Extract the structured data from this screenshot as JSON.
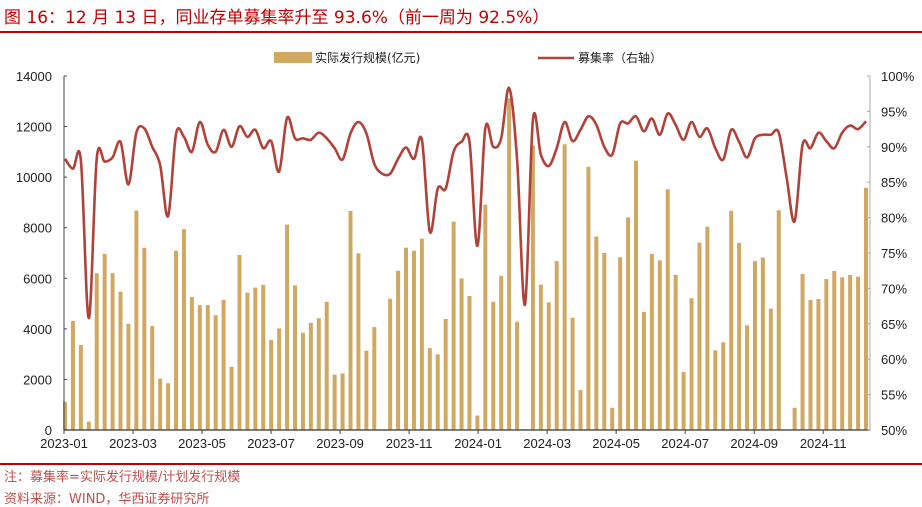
{
  "title": "图 16：12 月 13 日，同业存单募集率升至 93.6%（前一周为 92.5%）",
  "note": "注：募集率=实际发行规模/计划发行规模",
  "source": "资料来源：WIND，华西证券研究所",
  "colors": {
    "bar": "#d0a862",
    "line": "#b0423a",
    "title": "#c00000"
  },
  "chart_data": {
    "type": "bar+line",
    "legend_placement": "top",
    "grid": false,
    "x_tick_labels": [
      "2023-01",
      "2023-03",
      "2023-05",
      "2023-07",
      "2023-09",
      "2023-11",
      "2024-01",
      "2024-03",
      "2024-05",
      "2024-07",
      "2024-09",
      "2024-11"
    ],
    "y_left": {
      "ylim": [
        0,
        14000
      ],
      "ticks": [
        "0",
        "2000",
        "4000",
        "6000",
        "8000",
        "10000",
        "12000",
        "14000"
      ]
    },
    "y_right": {
      "ylim": [
        50,
        100
      ],
      "ticks": [
        "50%",
        "55%",
        "60%",
        "65%",
        "70%",
        "75%",
        "80%",
        "85%",
        "90%",
        "95%",
        "100%"
      ]
    },
    "series": [
      {
        "name": "实际发行规模(亿元)",
        "type": "bar",
        "axis": "left",
        "values": [
          1120,
          4310,
          3360,
          330,
          6200,
          6960,
          6200,
          5470,
          4200,
          8680,
          7210,
          4110,
          2030,
          1850,
          7090,
          7940,
          5260,
          4940,
          4940,
          4540,
          5150,
          2500,
          6920,
          5430,
          5630,
          5740,
          3560,
          4020,
          8120,
          5720,
          3850,
          4240,
          4420,
          5070,
          2190,
          2240,
          8660,
          6990,
          3140,
          4070,
          0,
          5190,
          6300,
          7210,
          7090,
          7570,
          3240,
          2990,
          4390,
          8240,
          5990,
          5300,
          570,
          8910,
          5070,
          6100,
          13120,
          4280,
          40,
          11260,
          5750,
          5050,
          6680,
          11300,
          4440,
          1580,
          10410,
          7650,
          7000,
          880,
          6830,
          8410,
          10650,
          4670,
          6960,
          6710,
          9520,
          6130,
          2290,
          5210,
          7410,
          8040,
          3150,
          3470,
          8670,
          7400,
          4140,
          6680,
          6820,
          4800,
          8690,
          0,
          880,
          6170,
          5140,
          5180,
          5970,
          6290,
          6040,
          6130,
          6060,
          9580
        ]
      },
      {
        "name": "募集率（右轴）",
        "type": "line",
        "axis": "right",
        "values": [
          88.3,
          86.9,
          88.1,
          65.8,
          88.3,
          87.9,
          88.5,
          90.7,
          84.7,
          92.0,
          92.6,
          90.0,
          87.4,
          80.2,
          91.8,
          91.4,
          89.3,
          93.5,
          90.3,
          89.3,
          92.4,
          90.0,
          92.9,
          91.4,
          92.4,
          89.8,
          90.8,
          86.5,
          94.1,
          91.2,
          91.2,
          91.0,
          92.0,
          91.2,
          89.8,
          88.2,
          91.9,
          93.5,
          91.9,
          87.6,
          86.2,
          86.2,
          88.3,
          89.9,
          88.3,
          91.0,
          78.0,
          84.1,
          84.1,
          89.3,
          90.7,
          90.7,
          76.0,
          92.6,
          90.0,
          91.2,
          98.3,
          88.3,
          67.7,
          93.8,
          88.9,
          87.3,
          89.8,
          93.5,
          90.8,
          92.4,
          94.3,
          93.1,
          90.0,
          88.9,
          93.3,
          93.3,
          94.3,
          92.2,
          94.0,
          91.7,
          94.7,
          93.1,
          91.0,
          93.5,
          91.4,
          92.6,
          89.8,
          88.2,
          92.4,
          90.7,
          88.5,
          91.2,
          91.7,
          91.7,
          92.0,
          85.6,
          79.5,
          90.3,
          89.8,
          92.0,
          90.8,
          89.8,
          92.0,
          93.0,
          92.5,
          93.6
        ]
      }
    ]
  }
}
